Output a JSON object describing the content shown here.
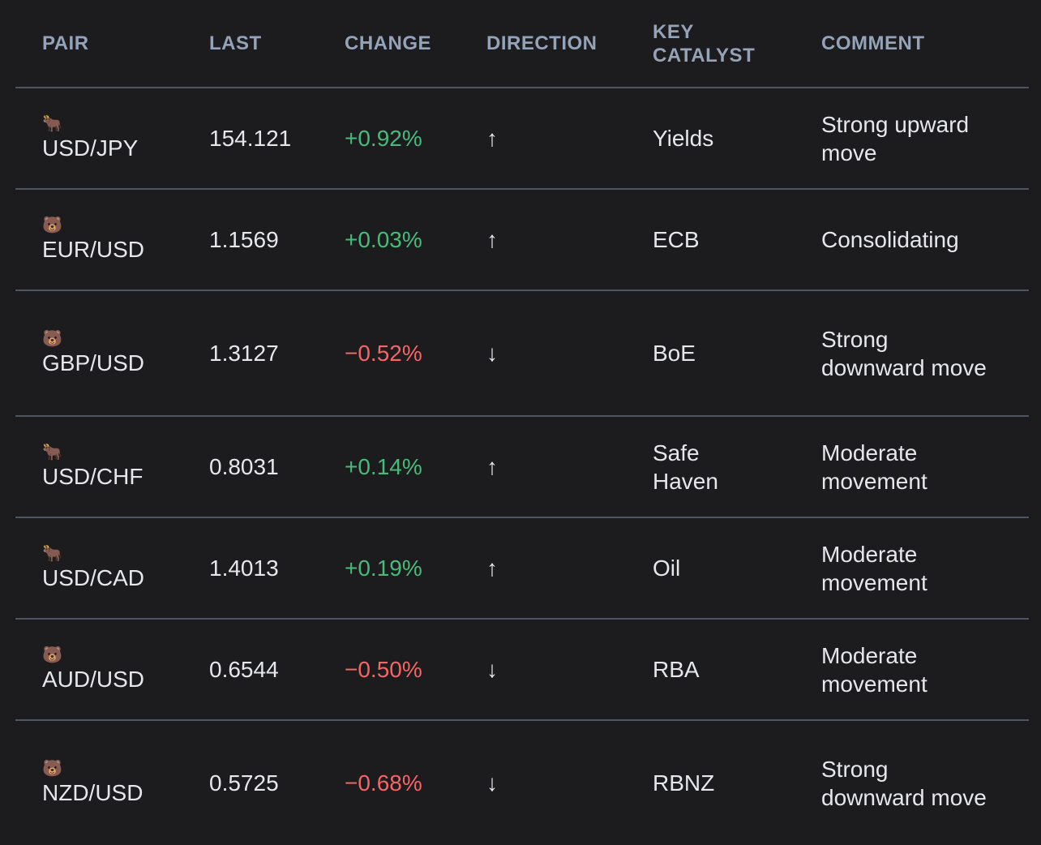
{
  "colors": {
    "background": "#1c1c1e",
    "header": "#94a3b8",
    "positive": "#48bb78",
    "negative": "#f56565",
    "divider": "#4b5563"
  },
  "headers": [
    "PAIR",
    "LAST",
    "CHANGE",
    "DIRECTION",
    "KEY CATALYST",
    "COMMENT"
  ],
  "rows": [
    {
      "icon": "🐂",
      "icon_name": "bull-icon",
      "pair": "USD/JPY",
      "last": "154.121",
      "change": "+0.92%",
      "sign": "pos",
      "direction": "↑",
      "catalyst": "Yields",
      "comment": "Strong upward move"
    },
    {
      "icon": "🐻",
      "icon_name": "bear-icon",
      "pair": "EUR/USD",
      "last": "1.1569",
      "change": "+0.03%",
      "sign": "pos",
      "direction": "↑",
      "catalyst": "ECB",
      "comment": "Consolidating"
    },
    {
      "icon": "🐻",
      "icon_name": "bear-icon",
      "pair": "GBP/USD",
      "last": "1.3127",
      "change": "−0.52%",
      "sign": "neg",
      "direction": "↓",
      "catalyst": "BoE",
      "comment": "Strong downward move"
    },
    {
      "icon": "🐂",
      "icon_name": "bull-icon",
      "pair": "USD/CHF",
      "last": "0.8031",
      "change": "+0.14%",
      "sign": "pos",
      "direction": "↑",
      "catalyst": "Safe Haven",
      "comment": "Moderate movement"
    },
    {
      "icon": "🐂",
      "icon_name": "bull-icon",
      "pair": "USD/CAD",
      "last": "1.4013",
      "change": "+0.19%",
      "sign": "pos",
      "direction": "↑",
      "catalyst": "Oil",
      "comment": "Moderate movement"
    },
    {
      "icon": "🐻",
      "icon_name": "bear-icon",
      "pair": "AUD/USD",
      "last": "0.6544",
      "change": "−0.50%",
      "sign": "neg",
      "direction": "↓",
      "catalyst": "RBA",
      "comment": "Moderate movement"
    },
    {
      "icon": "🐻",
      "icon_name": "bear-icon",
      "pair": "NZD/USD",
      "last": "0.5725",
      "change": "−0.68%",
      "sign": "neg",
      "direction": "↓",
      "catalyst": "RBNZ",
      "comment": "Strong downward move"
    }
  ]
}
